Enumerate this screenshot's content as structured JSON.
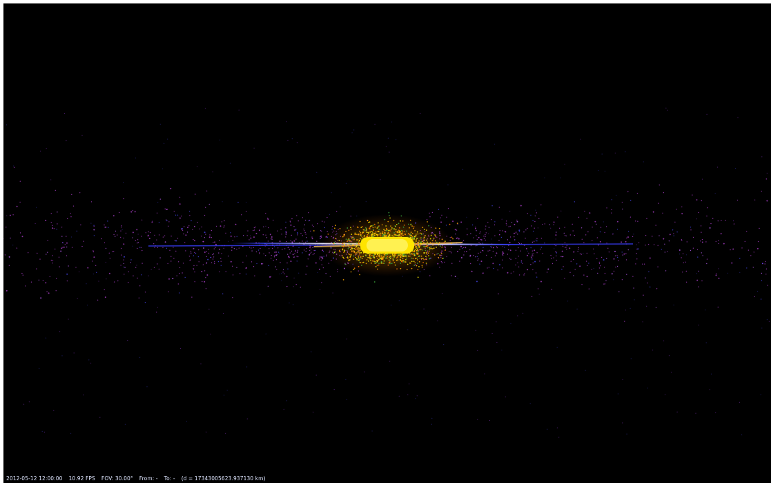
{
  "app": {
    "scene": "galaxy view rendered edge-on",
    "colors": {
      "background": "#000000",
      "frame": "#ffffff",
      "status_text": "#dfe6ff",
      "bulge_core": "#ffee00",
      "bulge_outer": "#ffaa00",
      "disk_stars": "#b040d0",
      "disk_line": "#4a55ff",
      "green_stars": "#3fae3f"
    }
  },
  "status": {
    "datetime": "2012-05-12 12:00:00",
    "fps": "10.92 FPS",
    "fov": "FOV: 30.00°",
    "from": "From: -",
    "to": "To: -",
    "distance": "(d = 17343005623.937130 km)"
  }
}
